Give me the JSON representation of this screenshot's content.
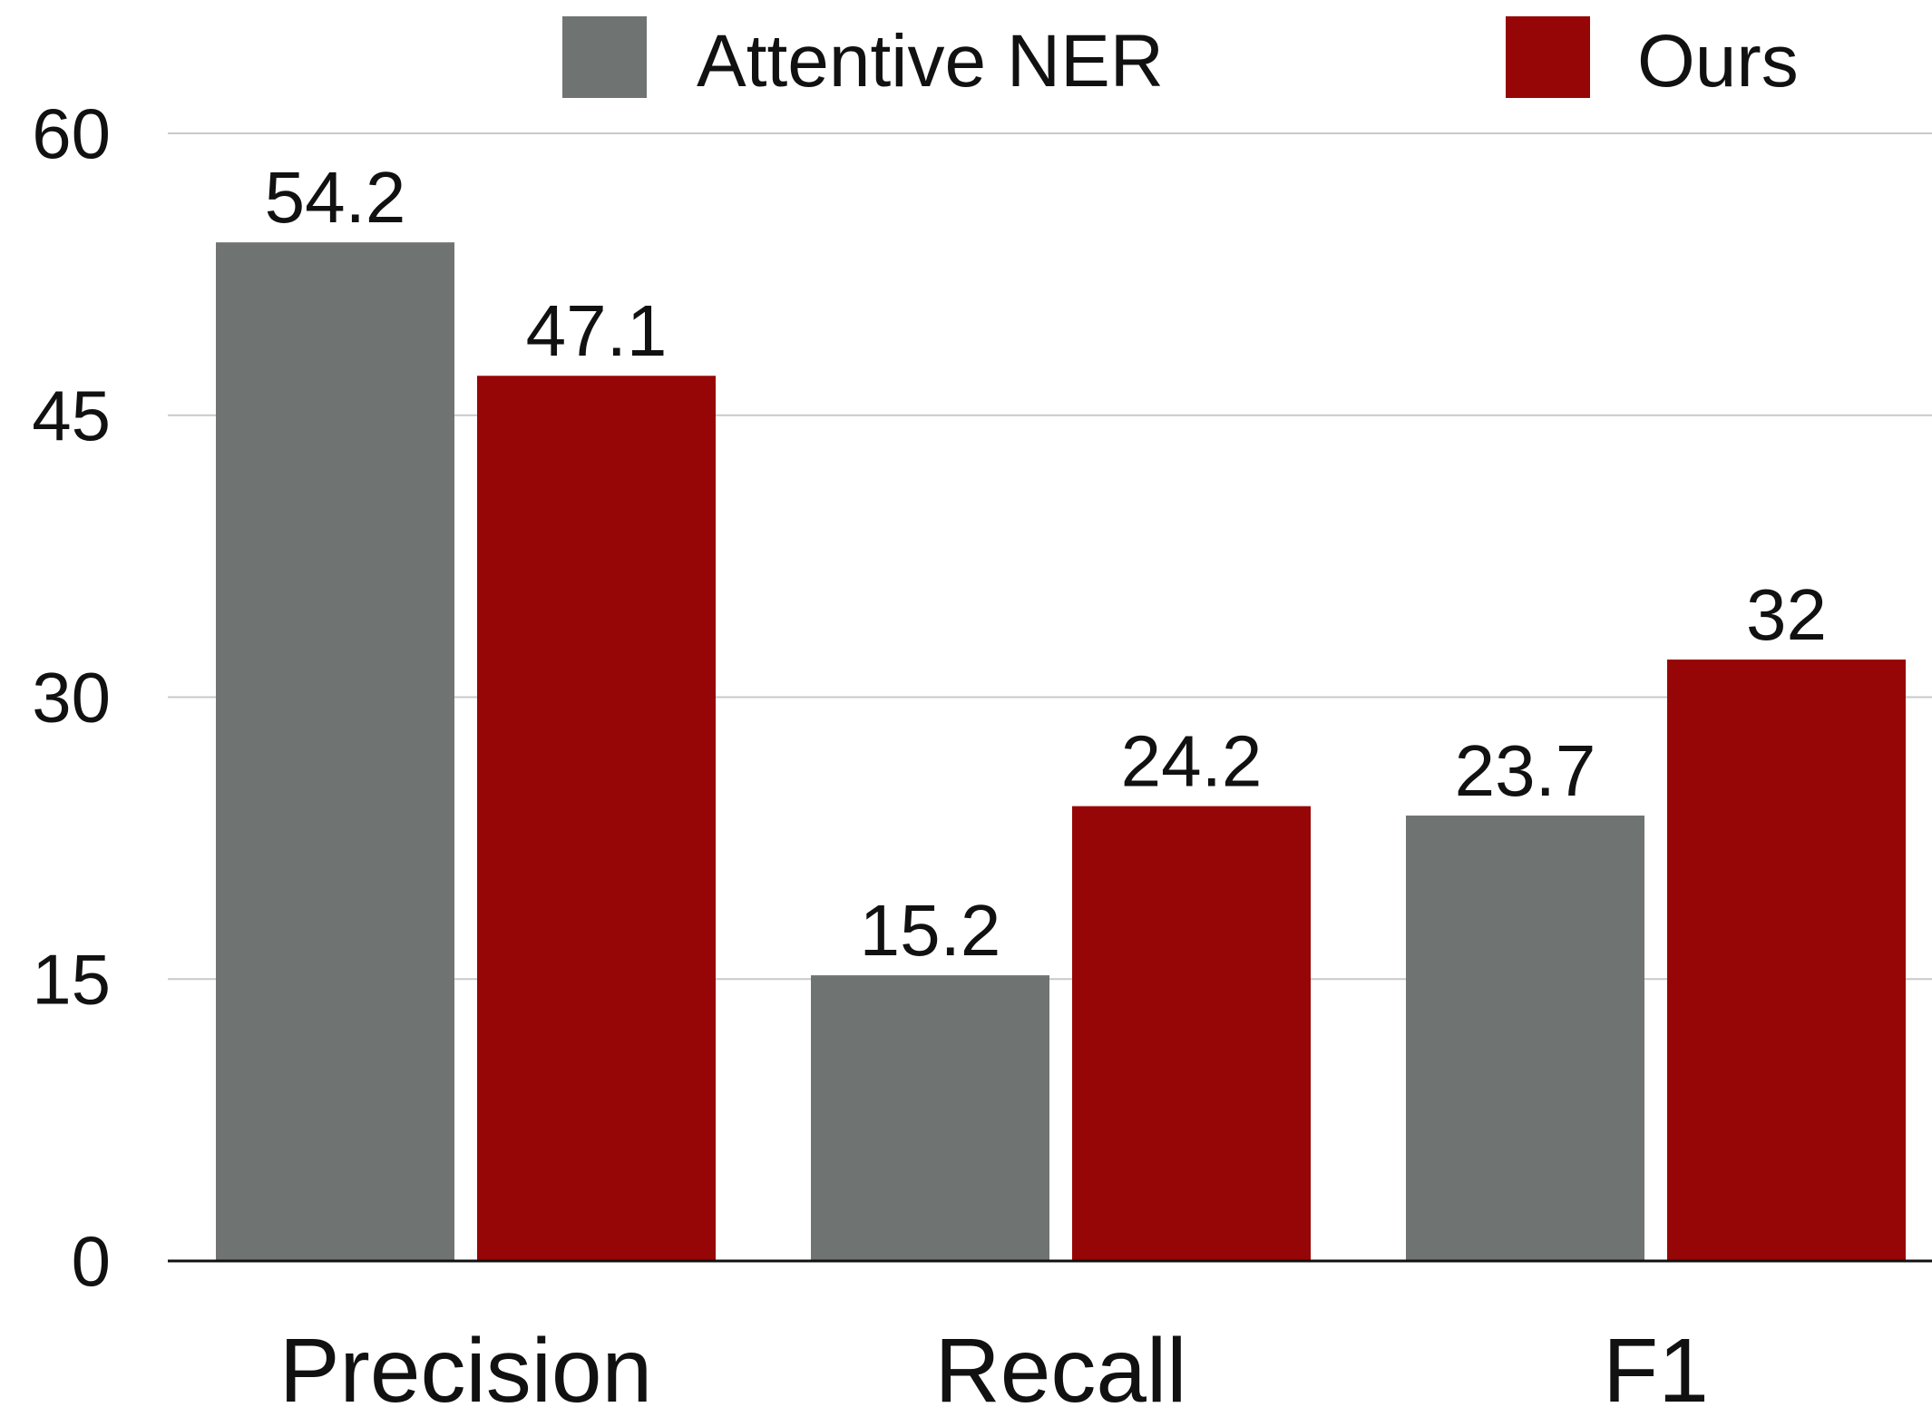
{
  "chart_data": {
    "type": "bar",
    "categories": [
      "Precision",
      "Recall",
      "F1"
    ],
    "series": [
      {
        "name": "Attentive NER",
        "values": [
          54.2,
          15.2,
          23.7
        ],
        "color": "#6f7472"
      },
      {
        "name": "Ours",
        "values": [
          47.1,
          24.2,
          32
        ],
        "color": "#960606"
      }
    ],
    "data_labels": [
      [
        "54.2",
        "15.2",
        "23.7"
      ],
      [
        "47.1",
        "24.2",
        "32"
      ]
    ],
    "yticks": [
      0,
      15,
      30,
      45,
      60
    ],
    "ylim": [
      0,
      60
    ],
    "grid": true,
    "grid_color": "#c9c9c9",
    "legend_position": "top",
    "title": "",
    "xlabel": "",
    "ylabel": ""
  }
}
